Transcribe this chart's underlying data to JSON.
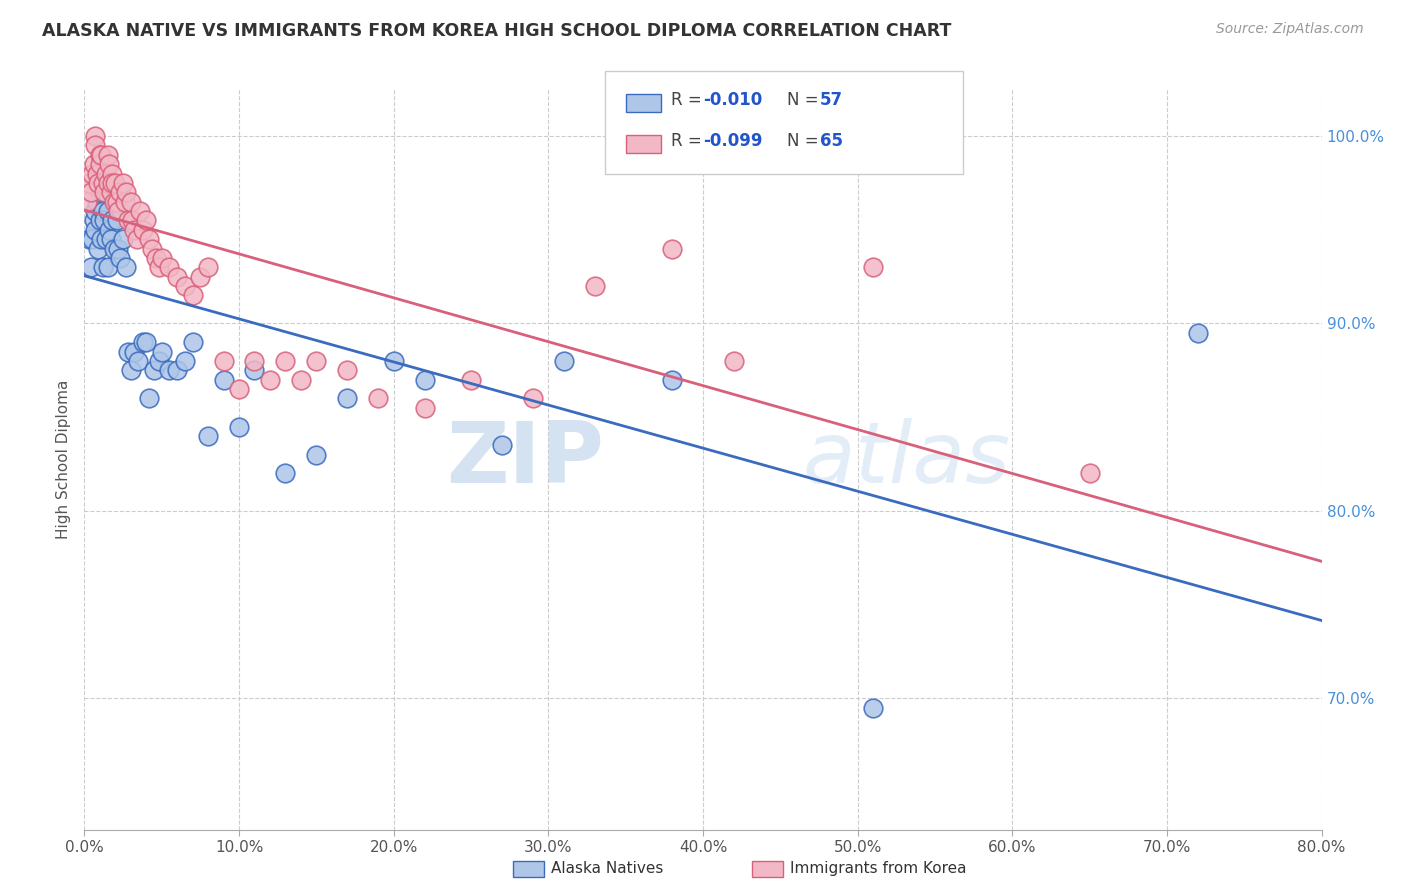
{
  "title": "ALASKA NATIVE VS IMMIGRANTS FROM KOREA HIGH SCHOOL DIPLOMA CORRELATION CHART",
  "source": "Source: ZipAtlas.com",
  "ylabel": "High School Diploma",
  "xlim": [
    0.0,
    0.8
  ],
  "ylim": [
    0.63,
    1.025
  ],
  "alaska_R": "-0.010",
  "alaska_N": "57",
  "korea_R": "-0.099",
  "korea_N": "65",
  "alaska_color": "#aec6e8",
  "korea_color": "#f2b8c6",
  "alaska_line_color": "#3a6bbf",
  "korea_line_color": "#d9607a",
  "legend_alaska_label": "Alaska Natives",
  "legend_korea_label": "Immigrants from Korea",
  "watermark_zip": "ZIP",
  "watermark_atlas": "atlas",
  "alaska_scatter_x": [
    0.003,
    0.004,
    0.005,
    0.006,
    0.007,
    0.007,
    0.008,
    0.009,
    0.01,
    0.01,
    0.011,
    0.012,
    0.012,
    0.013,
    0.014,
    0.014,
    0.015,
    0.015,
    0.016,
    0.017,
    0.018,
    0.019,
    0.02,
    0.021,
    0.022,
    0.023,
    0.024,
    0.025,
    0.027,
    0.028,
    0.03,
    0.032,
    0.035,
    0.038,
    0.04,
    0.042,
    0.045,
    0.048,
    0.05,
    0.055,
    0.06,
    0.065,
    0.07,
    0.08,
    0.09,
    0.1,
    0.11,
    0.13,
    0.15,
    0.17,
    0.2,
    0.22,
    0.27,
    0.31,
    0.38,
    0.51,
    0.72
  ],
  "alaska_scatter_y": [
    0.945,
    0.93,
    0.945,
    0.955,
    0.96,
    0.95,
    0.965,
    0.94,
    0.97,
    0.955,
    0.945,
    0.96,
    0.93,
    0.955,
    0.97,
    0.945,
    0.96,
    0.93,
    0.95,
    0.945,
    0.955,
    0.94,
    0.965,
    0.955,
    0.94,
    0.935,
    0.96,
    0.945,
    0.93,
    0.885,
    0.875,
    0.885,
    0.88,
    0.89,
    0.89,
    0.86,
    0.875,
    0.88,
    0.885,
    0.875,
    0.875,
    0.88,
    0.89,
    0.84,
    0.87,
    0.845,
    0.875,
    0.82,
    0.83,
    0.86,
    0.88,
    0.87,
    0.835,
    0.88,
    0.87,
    0.695,
    0.895
  ],
  "korea_scatter_x": [
    0.002,
    0.003,
    0.004,
    0.005,
    0.006,
    0.007,
    0.007,
    0.008,
    0.009,
    0.01,
    0.01,
    0.011,
    0.012,
    0.013,
    0.014,
    0.015,
    0.015,
    0.016,
    0.017,
    0.018,
    0.018,
    0.019,
    0.02,
    0.021,
    0.022,
    0.023,
    0.025,
    0.026,
    0.027,
    0.028,
    0.03,
    0.031,
    0.032,
    0.034,
    0.036,
    0.038,
    0.04,
    0.042,
    0.044,
    0.046,
    0.048,
    0.05,
    0.055,
    0.06,
    0.065,
    0.07,
    0.075,
    0.08,
    0.09,
    0.1,
    0.11,
    0.12,
    0.13,
    0.14,
    0.15,
    0.17,
    0.19,
    0.22,
    0.25,
    0.29,
    0.33,
    0.38,
    0.42,
    0.51,
    0.65
  ],
  "korea_scatter_y": [
    0.965,
    0.975,
    0.97,
    0.98,
    0.985,
    1.0,
    0.995,
    0.98,
    0.975,
    0.99,
    0.985,
    0.99,
    0.975,
    0.97,
    0.98,
    0.99,
    0.975,
    0.985,
    0.97,
    0.98,
    0.975,
    0.965,
    0.975,
    0.965,
    0.96,
    0.97,
    0.975,
    0.965,
    0.97,
    0.955,
    0.965,
    0.955,
    0.95,
    0.945,
    0.96,
    0.95,
    0.955,
    0.945,
    0.94,
    0.935,
    0.93,
    0.935,
    0.93,
    0.925,
    0.92,
    0.915,
    0.925,
    0.93,
    0.88,
    0.865,
    0.88,
    0.87,
    0.88,
    0.87,
    0.88,
    0.875,
    0.86,
    0.855,
    0.87,
    0.86,
    0.92,
    0.94,
    0.88,
    0.93,
    0.82
  ]
}
